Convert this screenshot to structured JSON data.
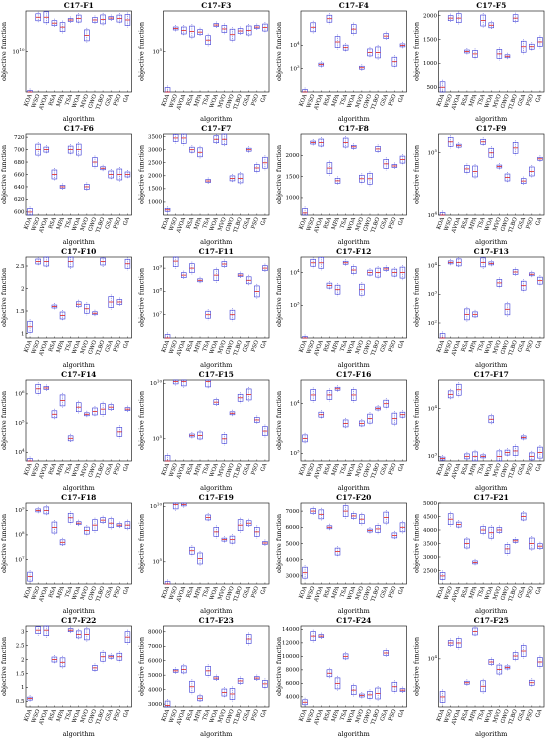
{
  "categories": [
    "KOA",
    "WSO",
    "AVOA",
    "RSA",
    "MPA",
    "TSA",
    "WOA",
    "MVO",
    "GWO",
    "TLBO",
    "GSA",
    "PSO",
    "GA"
  ],
  "xlabel": "algorithm",
  "ylabel": "objective function",
  "colors": {
    "box": "#3b3bd6",
    "median": "#e0201b",
    "outlier": "#e0201b",
    "axis": "#000000"
  },
  "chart_data": [
    {
      "type": "box",
      "title": "C17-F1",
      "ylim": [
        1000000000.0,
        100000000000.0
      ],
      "log": true,
      "yticks": [
        {
          "v": 10000000000.0,
          "t": "10^10"
        }
      ],
      "values": [
        1000000000.0,
        70000000000.0,
        70000000000.0,
        50000000000.0,
        40000000000.0,
        60000000000.0,
        65000000000.0,
        25000000000.0,
        60000000000.0,
        62000000000.0,
        67000000000.0,
        65000000000.0,
        60000000000.0
      ]
    },
    {
      "type": "box",
      "title": "C17-F3",
      "ylim": [
        10000.0,
        1000000.0
      ],
      "log": true,
      "yticks": [
        {
          "v": 100000.0,
          "t": "10^5"
        }
      ],
      "values": [
        10000.0,
        370000.0,
        330000.0,
        310000.0,
        300000.0,
        190000.0,
        450000.0,
        360000.0,
        260000.0,
        320000.0,
        330000.0,
        400000.0,
        390000.0
      ]
    },
    {
      "type": "box",
      "title": "C17-F4",
      "ylim": [
        100.0,
        300000.0
      ],
      "log": true,
      "yticks": [
        {
          "v": 1000.0,
          "t": "10^3"
        },
        {
          "v": 10000.0,
          "t": "10^4"
        }
      ],
      "values": [
        100.0,
        60000.0,
        1500.0,
        140000.0,
        14000.0,
        8000.0,
        50000.0,
        1100.0,
        5000.0,
        5000.0,
        25000.0,
        2000.0,
        10000.0
      ]
    },
    {
      "type": "box",
      "title": "C17-F5",
      "ylim": [
        400,
        2100
      ],
      "log": false,
      "yticks": [
        {
          "v": 500,
          "t": "500"
        },
        {
          "v": 1000,
          "t": "1000"
        },
        {
          "v": 1500,
          "t": "1500"
        },
        {
          "v": 2000,
          "t": "2000"
        }
      ],
      "values": [
        500,
        1950,
        1950,
        1250,
        1200,
        1900,
        1800,
        1200,
        1150,
        1950,
        1350,
        1350,
        1450
      ]
    },
    {
      "type": "box",
      "title": "C17-F6",
      "ylim": [
        595,
        725
      ],
      "log": false,
      "yticks": [
        {
          "v": 600,
          "t": "600"
        },
        {
          "v": 620,
          "t": "620"
        },
        {
          "v": 640,
          "t": "640"
        },
        {
          "v": 660,
          "t": "660"
        },
        {
          "v": 680,
          "t": "680"
        },
        {
          "v": 700,
          "t": "700"
        },
        {
          "v": 720,
          "t": "720"
        }
      ],
      "values": [
        600,
        700,
        700,
        660,
        640,
        700,
        700,
        640,
        680,
        670,
        660,
        660,
        660
      ]
    },
    {
      "type": "box",
      "title": "C17-F7",
      "ylim": [
        500,
        3600
      ],
      "log": false,
      "yticks": [
        {
          "v": 1000,
          "t": "1000"
        },
        {
          "v": 1500,
          "t": "1500"
        },
        {
          "v": 2000,
          "t": "2000"
        },
        {
          "v": 2500,
          "t": "2500"
        },
        {
          "v": 3000,
          "t": "3000"
        },
        {
          "v": 3500,
          "t": "3500"
        }
      ],
      "values": [
        700,
        3450,
        3450,
        3000,
        2900,
        1800,
        3400,
        3400,
        1900,
        1900,
        3000,
        2300,
        2500
      ]
    },
    {
      "type": "box",
      "title": "C17-F8",
      "ylim": [
        600,
        2500
      ],
      "log": false,
      "yticks": [
        {
          "v": 1000,
          "t": "1000"
        },
        {
          "v": 1500,
          "t": "1500"
        },
        {
          "v": 2000,
          "t": "2000"
        }
      ],
      "values": [
        650,
        2300,
        2300,
        1700,
        1400,
        2300,
        2200,
        1450,
        1450,
        2150,
        1800,
        1750,
        1900
      ]
    },
    {
      "type": "box",
      "title": "C17-F9",
      "ylim": [
        10000.0,
        200000.0
      ],
      "log": true,
      "yticks": [
        {
          "v": 10000.0,
          "t": "10^4"
        },
        {
          "v": 100000.0,
          "t": "10^5"
        }
      ],
      "values": [
        10000.0,
        150000.0,
        130000.0,
        55000.0,
        50000.0,
        150000.0,
        100000.0,
        60000.0,
        40000.0,
        120000.0,
        35000.0,
        50000.0,
        80000.0
      ]
    },
    {
      "type": "box",
      "title": "C17-F10",
      "ylim": [
        0.9,
        2.7
      ],
      "log": false,
      "yticks": [
        {
          "v": 1,
          "t": "1"
        },
        {
          "v": 1.5,
          "t": "1.5"
        },
        {
          "v": 2,
          "t": "2"
        },
        {
          "v": 2.5,
          "t": "2.5"
        }
      ],
      "values": [
        1.15,
        2.6,
        2.6,
        1.6,
        1.4,
        2.6,
        1.65,
        1.55,
        1.45,
        2.6,
        1.7,
        1.7,
        2.55
      ]
    },
    {
      "type": "box",
      "title": "C17-F11",
      "ylim": [
        1000000.0,
        3000000000.0
      ],
      "log": true,
      "yticks": [
        {
          "v": 10000000.0,
          "t": "10^7"
        },
        {
          "v": 100000000.0,
          "t": "10^8"
        },
        {
          "v": 1000000000.0,
          "t": "10^9"
        }
      ],
      "values": [
        1000000.0,
        2000000000.0,
        500000000.0,
        1000000000.0,
        300000000.0,
        10000000.0,
        500000000.0,
        1500000000.0,
        10000000.0,
        500000000.0,
        300000000.0,
        100000000.0,
        1000000000.0
      ]
    },
    {
      "type": "box",
      "title": "C17-F12",
      "ylim": [
        100.0,
        30000.0
      ],
      "log": true,
      "yticks": [
        {
          "v": 1000.0,
          "t": "10^3"
        },
        {
          "v": 10000.0,
          "t": "10^4"
        }
      ],
      "values": [
        100.0,
        20000.0,
        20000.0,
        4000.0,
        3000.0,
        20000.0,
        12000.0,
        3000.0,
        10000.0,
        10000.0,
        13000.0,
        10000.0,
        10000.0
      ]
    },
    {
      "type": "box",
      "title": "C17-F13",
      "ylim": [
        30.0,
        20000.0
      ],
      "log": true,
      "yticks": [
        {
          "v": 100.0,
          "t": "10^2"
        },
        {
          "v": 1000.0,
          "t": "10^3"
        },
        {
          "v": 10000.0,
          "t": "10^4"
        }
      ],
      "values": [
        30.0,
        13000.0,
        13000.0,
        200.0,
        200.0,
        13000.0,
        12000.0,
        2500.0,
        300.0,
        6000.0,
        2000.0,
        5000.0,
        3000.0
      ]
    },
    {
      "type": "box",
      "title": "C17-F14",
      "ylim": [
        5000.0,
        3000000.0
      ],
      "log": true,
      "yticks": [
        {
          "v": 10000.0,
          "t": "10^4"
        },
        {
          "v": 100000.0,
          "t": "10^5"
        },
        {
          "v": 1000000.0,
          "t": "10^6"
        }
      ],
      "values": [
        5000.0,
        1500000.0,
        1600000.0,
        200000.0,
        600000.0,
        30000.0,
        350000.0,
        200000.0,
        250000.0,
        300000.0,
        350000.0,
        50000.0,
        300000.0
      ]
    },
    {
      "type": "box",
      "title": "C17-F15",
      "ylim": [
        1000.0,
        20000000000.0
      ],
      "log": true,
      "yticks": [
        {
          "v": 100000.0,
          "t": "10^5"
        },
        {
          "v": 10000000000.0,
          "t": "10^10"
        }
      ],
      "values": [
        1000.0,
        15000000000.0,
        15000000000.0,
        200000.0,
        200000.0,
        15000000000.0,
        200000000.0,
        100000.0,
        20000000.0,
        500000000.0,
        1000000000.0,
        5000000.0,
        500000.0
      ]
    },
    {
      "type": "box",
      "title": "C17-F16",
      "ylim": [
        700.0,
        30000.0
      ],
      "log": true,
      "yticks": [
        {
          "v": 1000.0,
          "t": "10^3"
        },
        {
          "v": 10000.0,
          "t": "10^4"
        }
      ],
      "values": [
        2000.0,
        15000.0,
        6000.0,
        15000.0,
        20000.0,
        4000.0,
        15000.0,
        4000.0,
        5000.0,
        8000.0,
        10000.0,
        5000.0,
        6000.0
      ]
    },
    {
      "type": "box",
      "title": "C17-F17",
      "ylim": [
        800.0,
        40000.0
      ],
      "log": true,
      "yticks": [
        {
          "v": 1000.0,
          "t": "10^3"
        },
        {
          "v": 10000.0,
          "t": "10^4"
        }
      ],
      "values": [
        900.0,
        20000.0,
        25000.0,
        1000.0,
        1000.0,
        1000.0,
        6000.0,
        1000.0,
        1200.0,
        1300.0,
        2500.0,
        1000.0,
        1200.0
      ]
    },
    {
      "type": "box",
      "title": "C17-F18",
      "ylim": [
        1000000.0,
        2000000000.0
      ],
      "log": true,
      "yticks": [
        {
          "v": 10000000.0,
          "t": "10^7"
        },
        {
          "v": 100000000.0,
          "t": "10^8"
        },
        {
          "v": 1000000000.0,
          "t": "10^9"
        }
      ],
      "values": [
        2000000.0,
        1000000000.0,
        1000000000.0,
        200000000.0,
        50000000.0,
        500000000.0,
        300000000.0,
        150000000.0,
        250000000.0,
        400000000.0,
        300000000.0,
        250000000.0,
        250000000.0
      ]
    },
    {
      "type": "box",
      "title": "C17-F19",
      "ylim": [
        1000.0,
        20000000000.0
      ],
      "log": true,
      "yticks": [
        {
          "v": 100000.0,
          "t": "10^5"
        },
        {
          "v": 10000000000.0,
          "t": "10^10"
        }
      ],
      "values": [
        1000.0,
        15000000000.0,
        15000000000.0,
        1000000.0,
        200000.0,
        1000000000.0,
        50000000.0,
        10000000.0,
        10000000.0,
        200000000.0,
        300000000.0,
        50000000.0,
        5000000.0
      ]
    },
    {
      "type": "box",
      "title": "C17-F20",
      "ylim": [
        2500,
        7500
      ],
      "log": false,
      "yticks": [
        {
          "v": 3000,
          "t": "3000"
        },
        {
          "v": 4000,
          "t": "4000"
        },
        {
          "v": 5000,
          "t": "5000"
        },
        {
          "v": 6000,
          "t": "6000"
        },
        {
          "v": 7000,
          "t": "7000"
        }
      ],
      "values": [
        3200,
        7000,
        6800,
        6000,
        4500,
        7000,
        6700,
        6500,
        5800,
        5900,
        6600,
        5500,
        6000
      ]
    },
    {
      "type": "box",
      "title": "C17-F21",
      "ylim": [
        2000,
        5000
      ],
      "log": false,
      "yticks": [
        {
          "v": 2500,
          "t": "2500"
        },
        {
          "v": 3000,
          "t": "3000"
        },
        {
          "v": 3500,
          "t": "3500"
        },
        {
          "v": 4000,
          "t": "4000"
        },
        {
          "v": 4500,
          "t": "4500"
        },
        {
          "v": 5000,
          "t": "5000"
        }
      ],
      "values": [
        2300,
        4400,
        4200,
        3500,
        2800,
        4000,
        3900,
        4000,
        3300,
        3600,
        4500,
        3500,
        3400
      ]
    },
    {
      "type": "box",
      "title": "C17-F22",
      "ylim": [
        0.3,
        3.2
      ],
      "log": false,
      "yticks": [
        {
          "v": 0.5,
          "t": "0.5"
        },
        {
          "v": 1,
          "t": "1"
        },
        {
          "v": 1.5,
          "t": "1.5"
        },
        {
          "v": 2,
          "t": "2"
        },
        {
          "v": 2.5,
          "t": "2.5"
        },
        {
          "v": 3,
          "t": "3"
        }
      ],
      "values": [
        0.6,
        3.05,
        3.05,
        2,
        1.9,
        3.05,
        2.9,
        2.9,
        1.7,
        2.1,
        2.1,
        2.1,
        2.8
      ]
    },
    {
      "type": "box",
      "title": "C17-F23",
      "ylim": [
        2800,
        8400
      ],
      "log": false,
      "yticks": [
        {
          "v": 3000,
          "t": "3000"
        },
        {
          "v": 4000,
          "t": "4000"
        },
        {
          "v": 5000,
          "t": "5000"
        },
        {
          "v": 6000,
          "t": "6000"
        },
        {
          "v": 7000,
          "t": "7000"
        },
        {
          "v": 8000,
          "t": "8000"
        }
      ],
      "values": [
        2900,
        5300,
        5400,
        4200,
        3400,
        5300,
        4800,
        3800,
        3700,
        4600,
        7500,
        4800,
        4400
      ]
    },
    {
      "type": "box",
      "title": "C17-F24",
      "ylim": [
        2500,
        14500
      ],
      "log": false,
      "yticks": [
        {
          "v": 4000,
          "t": "4000"
        },
        {
          "v": 6000,
          "t": "6000"
        },
        {
          "v": 8000,
          "t": "8000"
        },
        {
          "v": 10000,
          "t": "10000"
        },
        {
          "v": 12000,
          "t": "12000"
        },
        {
          "v": 14000,
          "t": "14000"
        }
      ],
      "values": [
        3200,
        13000,
        13000,
        7500,
        6000,
        10000,
        5000,
        4200,
        4300,
        4500,
        10500,
        5500,
        5000
      ]
    },
    {
      "type": "box",
      "title": "C17-F25",
      "ylim": [
        2000.0,
        30000.0
      ],
      "log": true,
      "yticks": [
        {
          "v": 10000.0,
          "t": "10^4"
        }
      ],
      "values": [
        2800.0,
        17000.0,
        17000.0,
        4500.0,
        25000.0,
        4000.0,
        9000.0,
        7000.0,
        7500.0,
        11000.0,
        13000.0,
        4500.0,
        9000.0
      ]
    }
  ]
}
